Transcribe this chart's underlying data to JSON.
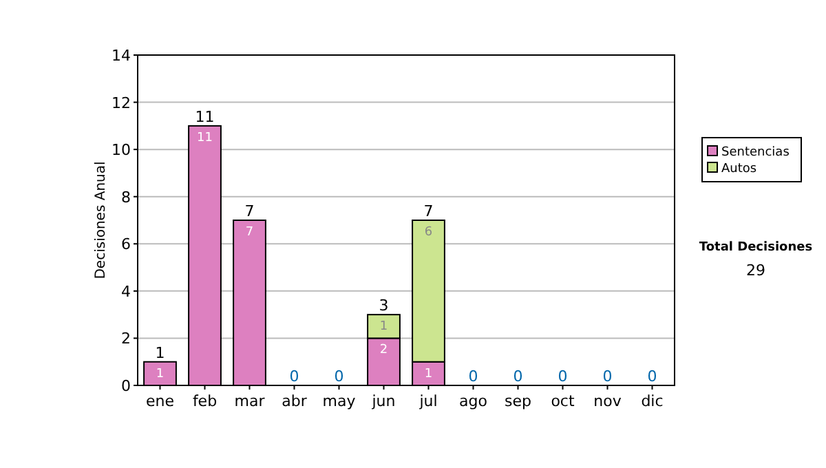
{
  "chart_data": {
    "type": "bar",
    "stacked": true,
    "categories": [
      "ene",
      "feb",
      "mar",
      "abr",
      "may",
      "jun",
      "jul",
      "ago",
      "sep",
      "oct",
      "nov",
      "dic"
    ],
    "series": [
      {
        "name": "Sentencias",
        "color": "#dd80c0",
        "values": [
          1,
          11,
          7,
          0,
          0,
          2,
          1,
          0,
          0,
          0,
          0,
          0
        ],
        "value_labels": [
          "1",
          "11",
          "7",
          null,
          null,
          "2",
          "1",
          null,
          null,
          null,
          null,
          null
        ]
      },
      {
        "name": "Autos",
        "color": "#cce590",
        "values": [
          0,
          0,
          0,
          0,
          0,
          1,
          6,
          0,
          0,
          0,
          0,
          0
        ],
        "value_labels": [
          null,
          null,
          null,
          null,
          null,
          "1",
          "6",
          null,
          null,
          null,
          null,
          null
        ]
      }
    ],
    "totals": [
      "1",
      "11",
      "7",
      "0",
      "0",
      "3",
      "7",
      "0",
      "0",
      "0",
      "0",
      "0"
    ],
    "ylabel": "Decisiones Anual",
    "ylim": [
      0,
      14
    ],
    "yticks": [
      0,
      2,
      4,
      6,
      8,
      10,
      12,
      14
    ],
    "grid": "y",
    "legend": "right",
    "annotations": [
      "Total Decisiones",
      "29"
    ]
  }
}
